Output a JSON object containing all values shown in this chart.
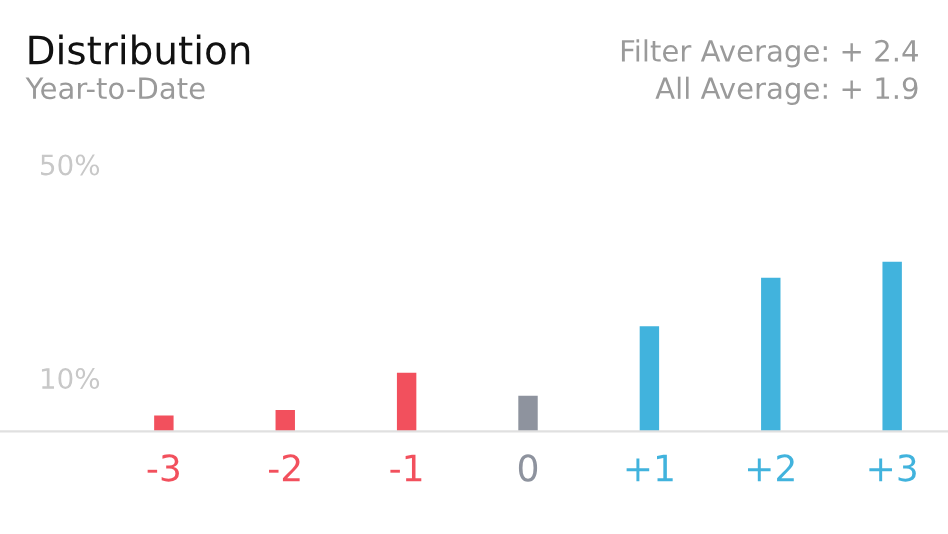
{
  "chart_data": {
    "type": "bar",
    "title": "Distribution",
    "subtitle": "Year-to-Date",
    "annotations": [
      "Filter Average: + 2.4",
      "All Average: + 1.9"
    ],
    "categories": [
      "-3",
      "-2",
      "-1",
      "0",
      "+1",
      "+2",
      "+3"
    ],
    "values": [
      3.0,
      4.0,
      11.0,
      6.7,
      19.7,
      28.8,
      31.8
    ],
    "colors": [
      "#f2505d",
      "#f2505d",
      "#f2505d",
      "#8e939e",
      "#41b3dd",
      "#41b3dd",
      "#41b3dd"
    ],
    "ylim": [
      0,
      50
    ],
    "yticks": [
      {
        "value": 10,
        "label": "10%"
      },
      {
        "value": 50,
        "label": "50%"
      }
    ],
    "grid": false,
    "legend": false
  }
}
